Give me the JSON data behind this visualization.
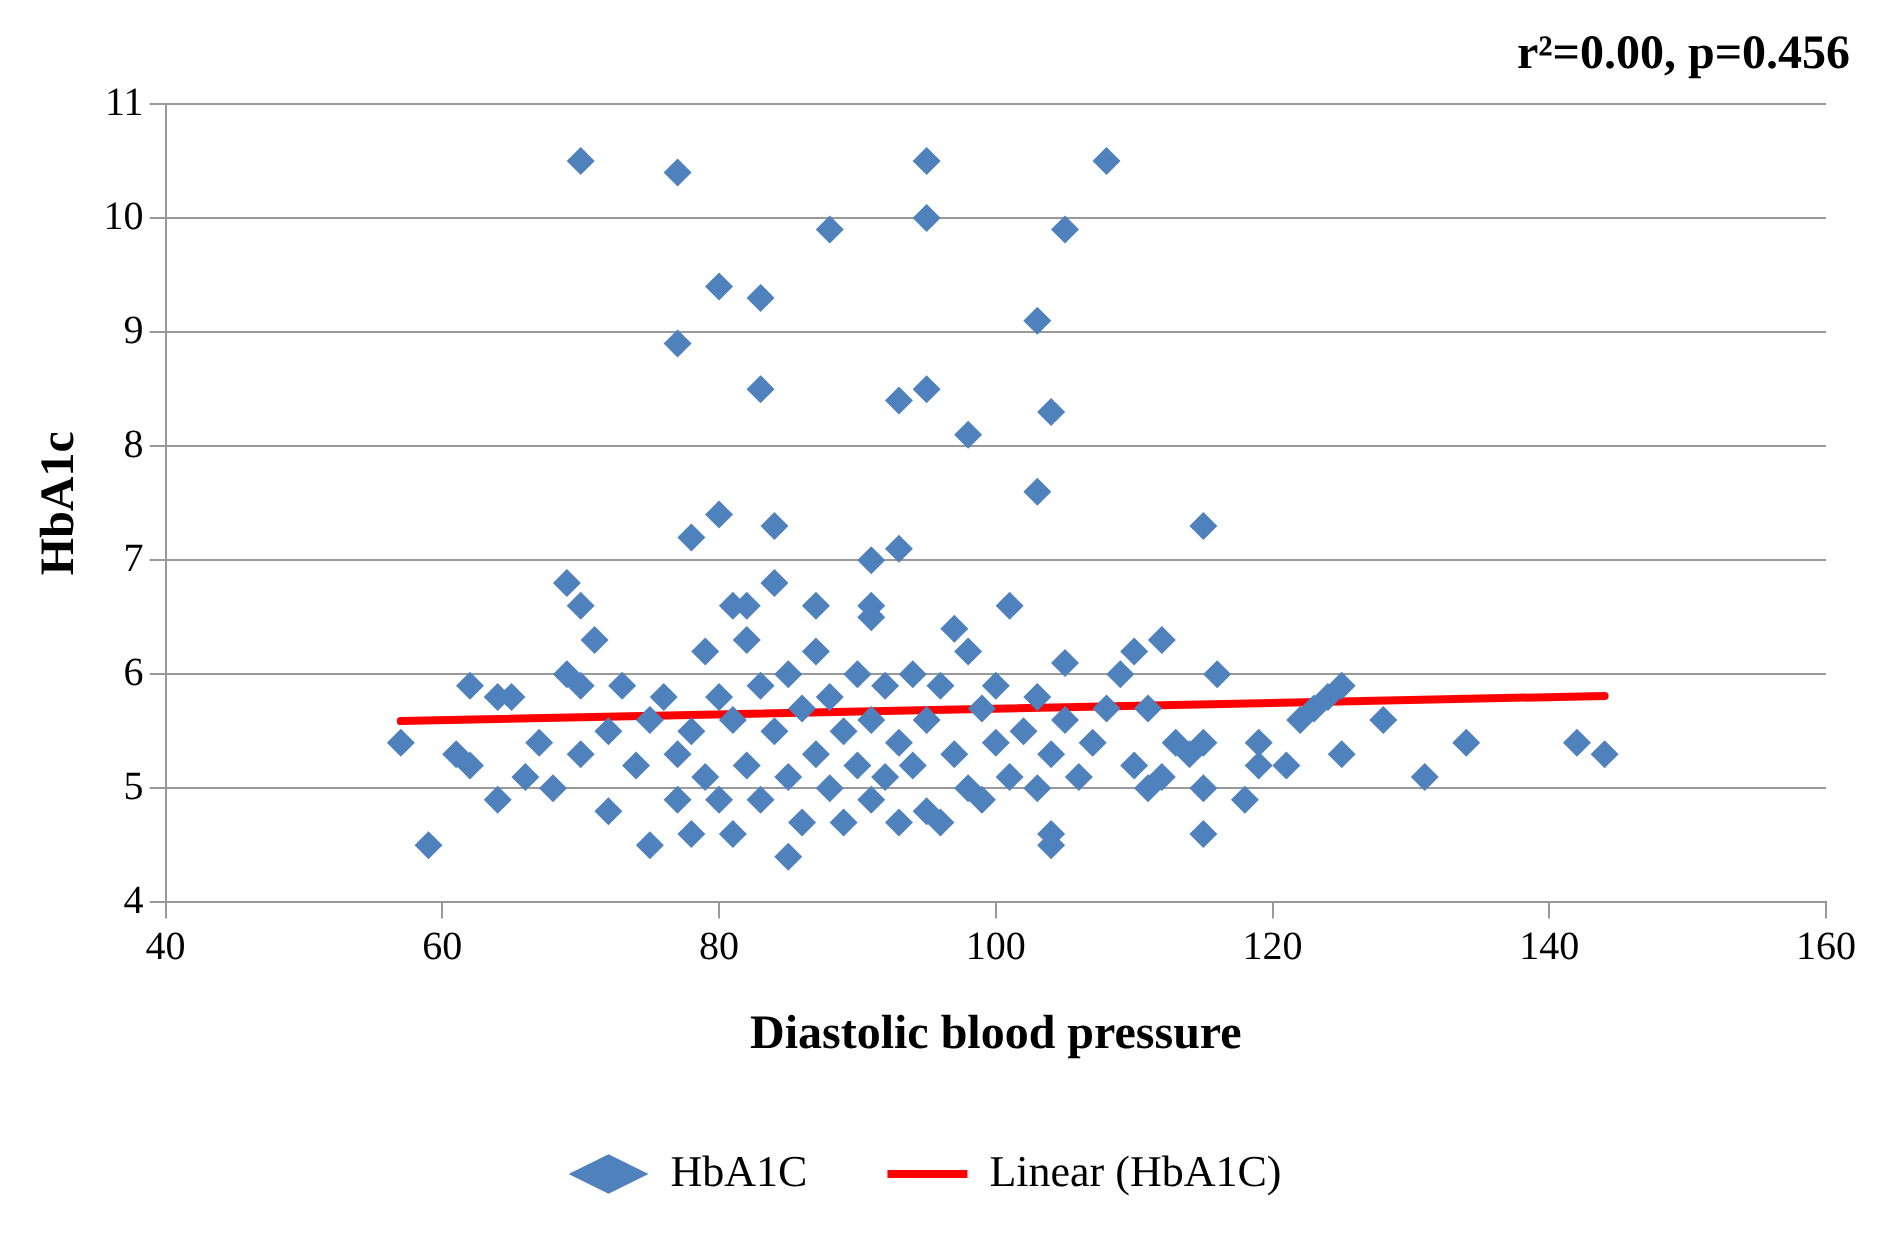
{
  "chart_data": {
    "type": "scatter",
    "xlabel": "Diastolic blood pressure",
    "ylabel": "HbA1c",
    "annotations": [
      "r²=0.00, p=0.456"
    ],
    "xlim": [
      40,
      160
    ],
    "xticks": [
      40,
      60,
      80,
      100,
      120,
      140,
      160
    ],
    "ylim": [
      4,
      11
    ],
    "yticks": [
      4,
      5,
      6,
      7,
      8,
      9,
      10,
      11
    ],
    "grid": "y",
    "legend": "bottom",
    "series": [
      {
        "name": "HbA1C",
        "type": "scatter",
        "marker": "diamond",
        "color": "#4f81bd",
        "x": [
          70,
          77,
          95,
          108,
          88,
          95,
          105,
          80,
          83,
          77,
          103,
          83,
          93,
          95,
          104,
          98,
          103,
          78,
          80,
          84,
          115,
          91,
          93,
          69,
          70,
          71,
          81,
          82,
          84,
          87,
          91,
          91,
          97,
          101,
          110,
          112,
          57,
          59,
          61,
          62,
          62,
          64,
          64,
          65,
          66,
          67,
          68,
          69,
          70,
          70,
          72,
          72,
          73,
          74,
          75,
          75,
          76,
          77,
          77,
          78,
          78,
          79,
          79,
          80,
          80,
          81,
          81,
          82,
          82,
          83,
          83,
          84,
          85,
          85,
          85,
          86,
          86,
          87,
          87,
          88,
          88,
          89,
          89,
          90,
          90,
          91,
          91,
          92,
          92,
          93,
          93,
          94,
          94,
          95,
          95,
          96,
          96,
          97,
          98,
          98,
          99,
          99,
          100,
          100,
          101,
          102,
          103,
          103,
          104,
          104,
          104,
          105,
          105,
          106,
          107,
          108,
          109,
          110,
          111,
          111,
          112,
          113,
          114,
          115,
          115,
          115,
          116,
          118,
          119,
          119,
          121,
          122,
          123,
          124,
          125,
          125,
          128,
          131,
          134,
          142,
          144
        ],
        "values": [
          10.5,
          10.4,
          10.5,
          10.5,
          9.9,
          10,
          9.9,
          9.4,
          9.3,
          8.9,
          9.1,
          8.5,
          8.4,
          8.5,
          8.3,
          8.1,
          7.6,
          7.2,
          7.4,
          7.3,
          7.3,
          7.0,
          7.1,
          6.8,
          6.6,
          6.3,
          6.6,
          6.6,
          6.8,
          6.6,
          6.6,
          6.5,
          6.4,
          6.6,
          6.2,
          6.3,
          5.4,
          4.5,
          5.3,
          5.2,
          5.9,
          5.8,
          4.9,
          5.8,
          5.1,
          5.4,
          5.0,
          6.0,
          5.9,
          5.3,
          4.8,
          5.5,
          5.9,
          5.2,
          4.5,
          5.6,
          5.8,
          4.9,
          5.3,
          4.6,
          5.5,
          6.2,
          5.1,
          5.8,
          4.9,
          4.6,
          5.6,
          6.3,
          5.2,
          5.9,
          4.9,
          5.5,
          4.4,
          5.1,
          6.0,
          4.7,
          5.7,
          5.3,
          6.2,
          5.0,
          5.8,
          4.7,
          5.5,
          6.0,
          5.2,
          4.9,
          5.6,
          5.9,
          5.1,
          4.7,
          5.4,
          6.0,
          5.2,
          4.8,
          5.6,
          4.7,
          5.9,
          5.3,
          6.2,
          5.0,
          4.9,
          5.7,
          5.4,
          5.9,
          5.1,
          5.5,
          5.8,
          5.0,
          4.5,
          4.6,
          5.3,
          6.1,
          5.6,
          5.1,
          5.4,
          5.7,
          6.0,
          5.2,
          5.0,
          5.7,
          5.1,
          5.4,
          5.3,
          4.6,
          5.0,
          5.4,
          6.0,
          4.9,
          5.2,
          5.4,
          5.2,
          5.6,
          5.7,
          5.8,
          5.3,
          5.9,
          5.6,
          5.1,
          5.4,
          5.4,
          5.3
        ]
      },
      {
        "name": "Linear (HbA1C)",
        "type": "line",
        "marker": "none",
        "color": "#ff0000",
        "x": [
          57,
          144
        ],
        "values": [
          5.59,
          5.81
        ]
      }
    ]
  }
}
